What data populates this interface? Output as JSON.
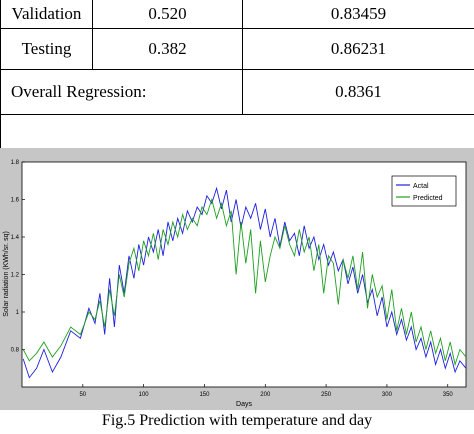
{
  "table": {
    "rows": [
      {
        "label": "Validation",
        "mse": "0.520",
        "r": "0.83459"
      },
      {
        "label": "Testing",
        "mse": "0.382",
        "r": "0.86231"
      }
    ],
    "overall": {
      "label": "Overall Regression:",
      "value": "0.8361"
    }
  },
  "figure": {
    "caption": "Fig.5  Prediction with temperature and day"
  },
  "chart_data": {
    "type": "line",
    "title": "",
    "xlabel": "Days",
    "ylabel": "Solar radiation (KWh/sr. sq)",
    "xlim": [
      0,
      365
    ],
    "ylim": [
      0.6,
      1.8
    ],
    "xticks": [
      50,
      100,
      150,
      200,
      250,
      300,
      350
    ],
    "yticks": [
      0.8,
      1,
      1.2,
      1.4,
      1.6,
      1.8
    ],
    "ytick_labels": [
      "0.8",
      "1",
      "1.2",
      "1.4",
      "1.6",
      "1.8"
    ],
    "legend": {
      "position": "top-right"
    },
    "colors": {
      "Actal": "#1f1fdf",
      "Predicted": "#1fa01f"
    },
    "series": [
      {
        "name": "Actal",
        "x": [
          1,
          6,
          12,
          18,
          25,
          32,
          40,
          48,
          55,
          60,
          64,
          68,
          72,
          76,
          80,
          84,
          88,
          92,
          96,
          100,
          104,
          108,
          112,
          116,
          120,
          124,
          128,
          132,
          136,
          140,
          144,
          148,
          152,
          156,
          160,
          164,
          168,
          172,
          176,
          180,
          184,
          188,
          192,
          196,
          200,
          204,
          208,
          212,
          216,
          220,
          224,
          228,
          232,
          236,
          240,
          244,
          248,
          252,
          256,
          260,
          264,
          268,
          272,
          276,
          280,
          284,
          288,
          292,
          296,
          300,
          304,
          308,
          312,
          316,
          320,
          324,
          328,
          332,
          336,
          340,
          344,
          348,
          352,
          356,
          360,
          365
        ],
        "y": [
          0.75,
          0.65,
          0.7,
          0.8,
          0.68,
          0.76,
          0.9,
          0.86,
          1.02,
          0.94,
          1.1,
          0.88,
          1.18,
          0.92,
          1.25,
          1.1,
          1.3,
          1.18,
          1.36,
          1.25,
          1.4,
          1.32,
          1.44,
          1.3,
          1.48,
          1.38,
          1.5,
          1.42,
          1.54,
          1.48,
          1.56,
          1.52,
          1.62,
          1.58,
          1.66,
          1.55,
          1.65,
          1.48,
          1.6,
          1.45,
          1.56,
          1.5,
          1.58,
          1.44,
          1.55,
          1.4,
          1.5,
          1.35,
          1.48,
          1.38,
          1.42,
          1.3,
          1.46,
          1.34,
          1.4,
          1.28,
          1.36,
          1.25,
          1.32,
          1.22,
          1.28,
          1.15,
          1.24,
          1.1,
          1.2,
          1.05,
          1.12,
          0.98,
          1.08,
          0.92,
          1.0,
          0.88,
          0.96,
          0.85,
          0.92,
          0.8,
          0.86,
          0.76,
          0.84,
          0.72,
          0.8,
          0.7,
          0.78,
          0.68,
          0.74,
          0.7
        ]
      },
      {
        "name": "Predicted",
        "x": [
          1,
          6,
          12,
          18,
          25,
          32,
          40,
          48,
          55,
          60,
          64,
          68,
          72,
          76,
          80,
          84,
          88,
          92,
          96,
          100,
          104,
          108,
          112,
          116,
          120,
          124,
          128,
          132,
          136,
          140,
          144,
          148,
          152,
          156,
          160,
          164,
          168,
          172,
          176,
          180,
          184,
          188,
          192,
          196,
          200,
          204,
          208,
          212,
          216,
          220,
          224,
          228,
          232,
          236,
          240,
          244,
          248,
          252,
          256,
          260,
          264,
          268,
          272,
          276,
          280,
          284,
          288,
          292,
          296,
          300,
          304,
          308,
          312,
          316,
          320,
          324,
          328,
          332,
          336,
          340,
          344,
          348,
          352,
          356,
          360,
          365
        ],
        "y": [
          0.8,
          0.74,
          0.78,
          0.84,
          0.76,
          0.82,
          0.92,
          0.88,
          1.0,
          0.96,
          1.06,
          0.92,
          1.12,
          0.98,
          1.2,
          1.08,
          1.26,
          1.34,
          1.22,
          1.38,
          1.3,
          1.42,
          1.28,
          1.44,
          1.36,
          1.48,
          1.4,
          1.52,
          1.44,
          1.5,
          1.46,
          1.56,
          1.52,
          1.6,
          1.5,
          1.58,
          1.46,
          1.54,
          1.2,
          1.48,
          1.26,
          1.44,
          1.1,
          1.38,
          1.16,
          1.3,
          1.4,
          1.34,
          1.46,
          1.36,
          1.3,
          1.44,
          1.32,
          1.4,
          1.22,
          1.36,
          1.1,
          1.3,
          1.26,
          1.04,
          1.28,
          1.18,
          1.3,
          1.12,
          1.32,
          1.02,
          1.2,
          1.08,
          1.14,
          0.96,
          1.12,
          0.9,
          1.02,
          0.88,
          1.0,
          0.84,
          0.92,
          0.8,
          0.9,
          0.78,
          0.86,
          0.74,
          0.84,
          0.72,
          0.8,
          0.76
        ]
      }
    ]
  }
}
